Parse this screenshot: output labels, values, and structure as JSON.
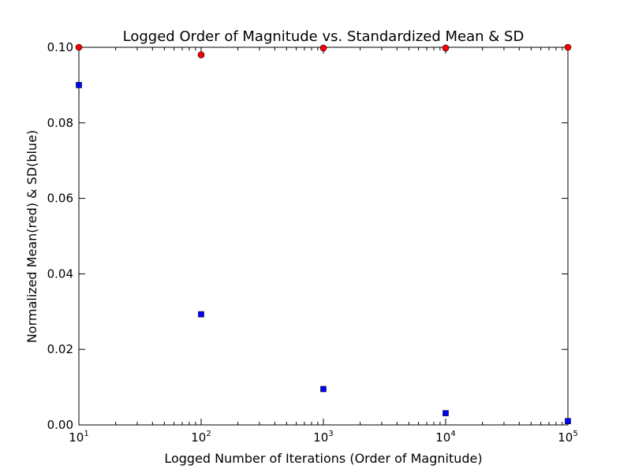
{
  "chart_data": {
    "type": "scatter",
    "title": "Logged Order of Magnitude vs. Standardized Mean & SD",
    "xlabel": "Logged Number of Iterations (Order of Magnitude)",
    "ylabel": "Normalized Mean(red) & SD(blue)",
    "xscale": "log",
    "xlim": [
      10,
      100000
    ],
    "ylim": [
      0,
      0.1
    ],
    "x_ticks": [
      {
        "base": "10",
        "exp": "1",
        "value": 10
      },
      {
        "base": "10",
        "exp": "2",
        "value": 100
      },
      {
        "base": "10",
        "exp": "3",
        "value": 1000
      },
      {
        "base": "10",
        "exp": "4",
        "value": 10000
      },
      {
        "base": "10",
        "exp": "5",
        "value": 100000
      }
    ],
    "y_ticks": [
      "0.00",
      "0.02",
      "0.04",
      "0.06",
      "0.08",
      "0.10"
    ],
    "grid": false,
    "series": [
      {
        "color": "#ff0000",
        "marker": "circle",
        "x": [
          10,
          100,
          1000,
          10000,
          100000
        ],
        "y": [
          0.1,
          0.098,
          0.0998,
          0.0998,
          0.1
        ]
      },
      {
        "color": "#0000ff",
        "marker": "square",
        "x": [
          10,
          100,
          1000,
          10000,
          100000
        ],
        "y": [
          0.09,
          0.0293,
          0.0095,
          0.0031,
          0.001
        ]
      }
    ]
  }
}
